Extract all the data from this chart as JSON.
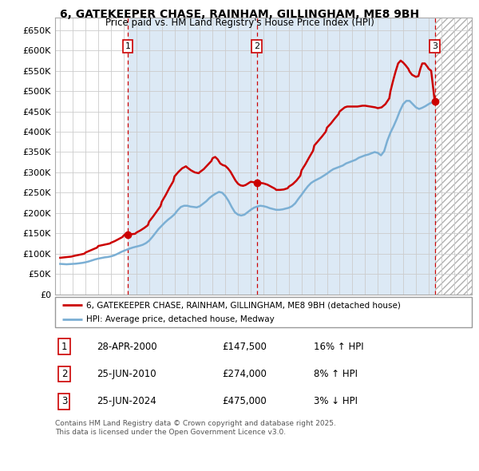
{
  "title": "6, GATEKEEPER CHASE, RAINHAM, GILLINGHAM, ME8 9BH",
  "subtitle": "Price paid vs. HM Land Registry's House Price Index (HPI)",
  "ytick_values": [
    0,
    50000,
    100000,
    150000,
    200000,
    250000,
    300000,
    350000,
    400000,
    450000,
    500000,
    550000,
    600000,
    650000
  ],
  "ylabel_ticks": [
    "£0",
    "£50K",
    "£100K",
    "£150K",
    "£200K",
    "£250K",
    "£300K",
    "£350K",
    "£400K",
    "£450K",
    "£500K",
    "£550K",
    "£600K",
    "£650K"
  ],
  "ylim": [
    0,
    680000
  ],
  "xlim_start": 1994.6,
  "xlim_end": 2027.4,
  "shade_start": 2000.33,
  "shade_end": 2024.48,
  "sale_dates": [
    2000.33,
    2010.48,
    2024.48
  ],
  "sale_prices": [
    147500,
    274000,
    475000
  ],
  "sale_labels": [
    "1",
    "2",
    "3"
  ],
  "hpi_line_color": "#7bafd4",
  "price_line_color": "#cc0000",
  "sale_marker_color": "#cc0000",
  "dashed_vline_color": "#cc0000",
  "grid_color": "#cccccc",
  "chart_bg_color": "#ffffff",
  "shade_color": "#dce9f5",
  "hatch_color": "#cccccc",
  "legend_label_red": "6, GATEKEEPER CHASE, RAINHAM, GILLINGHAM, ME8 9BH (detached house)",
  "legend_label_blue": "HPI: Average price, detached house, Medway",
  "transaction_rows": [
    {
      "label": "1",
      "date": "28-APR-2000",
      "price": "£147,500",
      "info": "16% ↑ HPI"
    },
    {
      "label": "2",
      "date": "25-JUN-2010",
      "price": "£274,000",
      "info": "8% ↑ HPI"
    },
    {
      "label": "3",
      "date": "25-JUN-2024",
      "price": "£475,000",
      "info": "3% ↓ HPI"
    }
  ],
  "footer": "Contains HM Land Registry data © Crown copyright and database right 2025.\nThis data is licensed under the Open Government Licence v3.0.",
  "hpi_data_years": [
    1995,
    1995.25,
    1995.5,
    1995.75,
    1996,
    1996.25,
    1996.5,
    1996.75,
    1997,
    1997.25,
    1997.5,
    1997.75,
    1998,
    1998.25,
    1998.5,
    1998.75,
    1999,
    1999.25,
    1999.5,
    1999.75,
    2000,
    2000.25,
    2000.5,
    2000.75,
    2001,
    2001.25,
    2001.5,
    2001.75,
    2002,
    2002.25,
    2002.5,
    2002.75,
    2003,
    2003.25,
    2003.5,
    2003.75,
    2004,
    2004.25,
    2004.5,
    2004.75,
    2005,
    2005.25,
    2005.5,
    2005.75,
    2006,
    2006.25,
    2006.5,
    2006.75,
    2007,
    2007.25,
    2007.5,
    2007.75,
    2008,
    2008.25,
    2008.5,
    2008.75,
    2009,
    2009.25,
    2009.5,
    2009.75,
    2010,
    2010.25,
    2010.5,
    2010.75,
    2011,
    2011.25,
    2011.5,
    2011.75,
    2012,
    2012.25,
    2012.5,
    2012.75,
    2013,
    2013.25,
    2013.5,
    2013.75,
    2014,
    2014.25,
    2014.5,
    2014.75,
    2015,
    2015.25,
    2015.5,
    2015.75,
    2016,
    2016.25,
    2016.5,
    2016.75,
    2017,
    2017.25,
    2017.5,
    2017.75,
    2018,
    2018.25,
    2018.5,
    2018.75,
    2019,
    2019.25,
    2019.5,
    2019.75,
    2020,
    2020.25,
    2020.5,
    2020.75,
    2021,
    2021.25,
    2021.5,
    2021.75,
    2022,
    2022.25,
    2022.5,
    2022.75,
    2023,
    2023.25,
    2023.5,
    2023.75,
    2024,
    2024.25,
    2024.48
  ],
  "hpi_data_values": [
    75000,
    74500,
    74000,
    74500,
    75000,
    75500,
    76500,
    77500,
    79000,
    81000,
    83500,
    86000,
    88000,
    89500,
    91000,
    92000,
    93500,
    96000,
    99500,
    103500,
    107000,
    110000,
    113000,
    115500,
    117500,
    119500,
    122000,
    126000,
    132000,
    141000,
    151000,
    161000,
    169000,
    177000,
    184000,
    190000,
    197000,
    207000,
    215000,
    218000,
    218000,
    216000,
    215000,
    214000,
    217000,
    223000,
    229000,
    237000,
    243000,
    248000,
    252000,
    250000,
    242000,
    230000,
    215000,
    202000,
    196000,
    194000,
    196000,
    202000,
    208000,
    213000,
    216000,
    218000,
    217000,
    215000,
    212000,
    210000,
    208000,
    208000,
    209000,
    211000,
    213000,
    217000,
    224000,
    235000,
    245000,
    256000,
    266000,
    274000,
    279000,
    283000,
    287000,
    292000,
    297000,
    303000,
    308000,
    311000,
    314000,
    317000,
    322000,
    325000,
    328000,
    331000,
    336000,
    339000,
    342000,
    344000,
    347000,
    350000,
    348000,
    342000,
    352000,
    378000,
    398000,
    414000,
    432000,
    452000,
    468000,
    476000,
    476000,
    468000,
    460000,
    456000,
    459000,
    463000,
    468000,
    472000,
    475000
  ],
  "price_data_years": [
    1995,
    1995.3,
    1995.6,
    1995.9,
    1996,
    1996.3,
    1996.6,
    1996.9,
    1997,
    1997.3,
    1997.6,
    1997.9,
    1998,
    1998.3,
    1998.6,
    1998.9,
    1999,
    1999.3,
    1999.6,
    1999.9,
    2000,
    2000.1,
    2000.33,
    2000.6,
    2000.9,
    2001,
    2001.3,
    2001.6,
    2001.9,
    2002,
    2002.3,
    2002.6,
    2002.9,
    2003,
    2003.3,
    2003.6,
    2003.9,
    2004,
    2004.3,
    2004.6,
    2004.9,
    2005,
    2005.3,
    2005.6,
    2005.9,
    2006,
    2006.3,
    2006.6,
    2006.9,
    2007,
    2007.2,
    2007.4,
    2007.6,
    2007.8,
    2008,
    2008.2,
    2008.4,
    2008.6,
    2008.8,
    2009,
    2009.2,
    2009.4,
    2009.6,
    2009.8,
    2010,
    2010.2,
    2010.48,
    2010.6,
    2010.8,
    2011,
    2011.3,
    2011.6,
    2011.9,
    2012,
    2012.3,
    2012.6,
    2012.9,
    2013,
    2013.3,
    2013.6,
    2013.9,
    2014,
    2014.3,
    2014.6,
    2014.9,
    2015,
    2015.3,
    2015.6,
    2015.9,
    2016,
    2016.3,
    2016.6,
    2016.9,
    2017,
    2017.2,
    2017.4,
    2017.6,
    2017.8,
    2018,
    2018.2,
    2018.4,
    2018.6,
    2018.8,
    2019,
    2019.2,
    2019.4,
    2019.6,
    2019.8,
    2020,
    2020.3,
    2020.6,
    2020.9,
    2021,
    2021.2,
    2021.4,
    2021.6,
    2021.8,
    2022,
    2022.2,
    2022.4,
    2022.5,
    2022.7,
    2023,
    2023.2,
    2023.35,
    2023.5,
    2023.7,
    2023.9,
    2024,
    2024.2,
    2024.48
  ],
  "price_data_values": [
    90000,
    91000,
    92000,
    93000,
    94000,
    96000,
    98000,
    100000,
    103000,
    107000,
    111000,
    115000,
    119000,
    121000,
    123000,
    125000,
    127000,
    131000,
    136000,
    141000,
    145000,
    147000,
    147500,
    148000,
    149000,
    152000,
    157000,
    163000,
    170000,
    179000,
    191000,
    204000,
    217000,
    228000,
    244000,
    262000,
    278000,
    290000,
    301000,
    310000,
    315000,
    312000,
    305000,
    300000,
    298000,
    301000,
    308000,
    318000,
    328000,
    335000,
    338000,
    332000,
    322000,
    318000,
    316000,
    310000,
    302000,
    291000,
    280000,
    272000,
    268000,
    267000,
    269000,
    273000,
    277000,
    276000,
    274000,
    274000,
    274000,
    273000,
    270000,
    265000,
    260000,
    257000,
    257000,
    258000,
    261000,
    265000,
    271000,
    280000,
    292000,
    305000,
    320000,
    337000,
    353000,
    366000,
    377000,
    388000,
    400000,
    410000,
    420000,
    432000,
    443000,
    450000,
    455000,
    460000,
    462000,
    462000,
    462000,
    462000,
    462000,
    463000,
    464000,
    464000,
    463000,
    462000,
    461000,
    460000,
    458000,
    460000,
    468000,
    482000,
    500000,
    525000,
    548000,
    568000,
    575000,
    570000,
    563000,
    555000,
    548000,
    540000,
    535000,
    537000,
    555000,
    568000,
    568000,
    560000,
    555000,
    550000,
    475000
  ]
}
